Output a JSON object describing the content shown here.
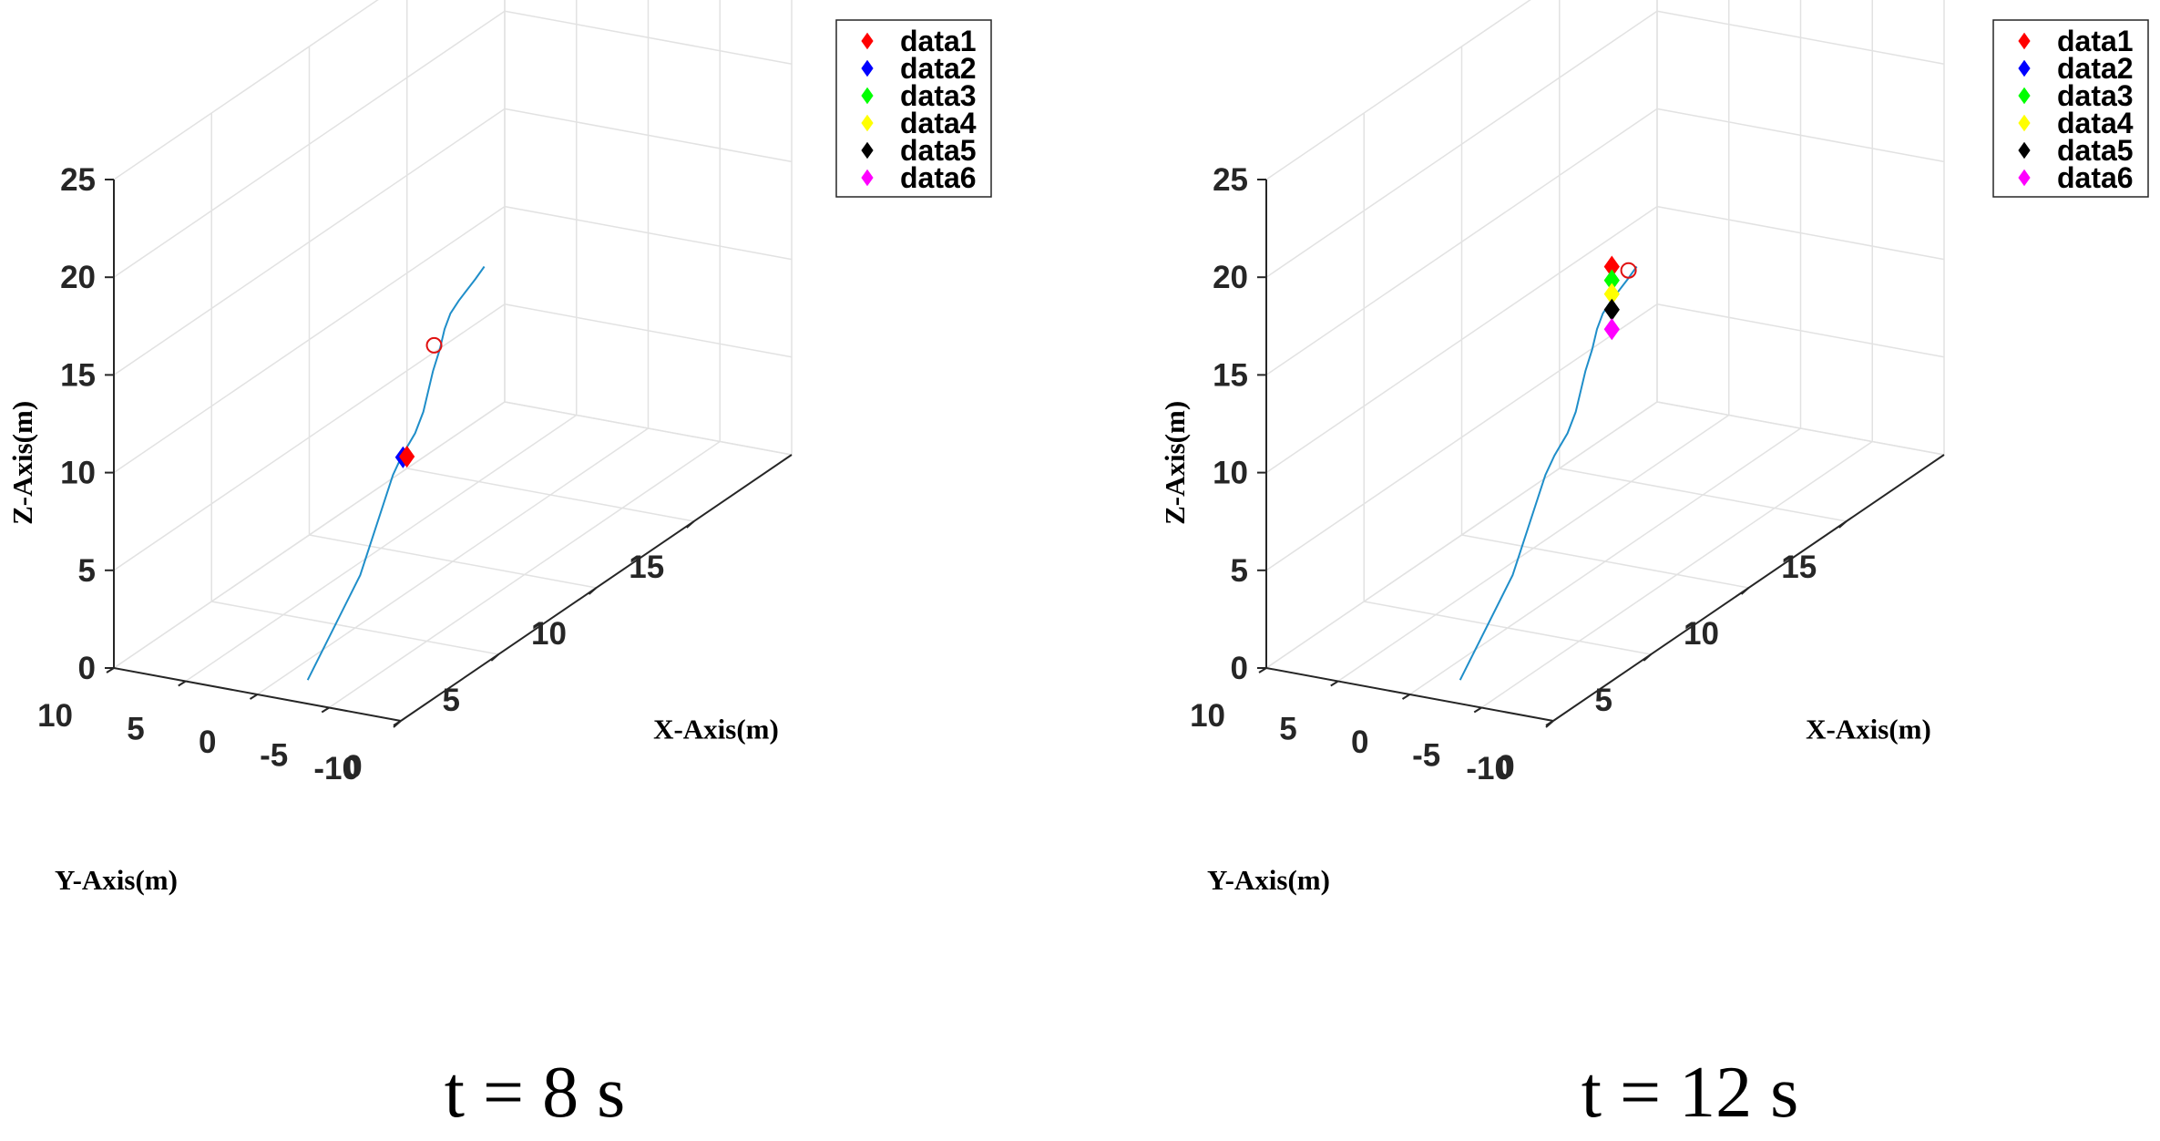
{
  "chart_data": [
    {
      "type": "line3d",
      "caption": "t = 8 s",
      "xlabel": "X-Axis(m)",
      "ylabel": "Y-Axis(m)",
      "zlabel": "Z-Axis(m)",
      "xlim": [
        0,
        20
      ],
      "ylim": [
        -10,
        10
      ],
      "zlim": [
        0,
        25
      ],
      "x_ticks": [
        "0",
        "5",
        "10",
        "15"
      ],
      "y_ticks": [
        "-10",
        "-5",
        "0",
        "5",
        "10"
      ],
      "z_ticks": [
        "0",
        "5",
        "10",
        "15",
        "20",
        "25"
      ],
      "trajectory": {
        "color": "#1f8ec9",
        "points": [
          [
            1.4,
            -1.6,
            0
          ],
          [
            2.4,
            -3.9,
            5
          ],
          [
            2.9,
            -5.5,
            10
          ],
          [
            3.0,
            -6.0,
            11
          ],
          [
            3.3,
            -6.5,
            12
          ],
          [
            3.5,
            -6.8,
            13
          ],
          [
            3.6,
            -7.0,
            14
          ],
          [
            3.7,
            -7.2,
            15
          ],
          [
            3.9,
            -7.4,
            16
          ],
          [
            4.0,
            -7.6,
            17
          ],
          [
            4.3,
            -7.6,
            17.6
          ],
          [
            4.8,
            -7.5,
            17.9
          ],
          [
            5.8,
            -7.3,
            18.3
          ],
          [
            6.4,
            -7.1,
            18.5
          ]
        ]
      },
      "target_marker": {
        "point": [
          4.2,
          -6.6,
          15.9
        ],
        "color": "#e01010"
      },
      "legend": [
        {
          "label": "data1",
          "color": "#ff0000"
        },
        {
          "label": "data2",
          "color": "#0000ff"
        },
        {
          "label": "data3",
          "color": "#00ff00"
        },
        {
          "label": "data4",
          "color": "#ffff00"
        },
        {
          "label": "data5",
          "color": "#000000"
        },
        {
          "label": "data6",
          "color": "#ff00ff"
        }
      ],
      "markers": [
        {
          "series": "data2",
          "color": "#0000ff",
          "point": [
            2.9,
            -6.2,
            11.0
          ]
        },
        {
          "series": "data1",
          "color": "#ff0000",
          "point": [
            3.1,
            -6.2,
            10.9
          ]
        }
      ]
    },
    {
      "type": "line3d",
      "caption": "t = 12 s",
      "xlabel": "X-Axis(m)",
      "ylabel": "Y-Axis(m)",
      "zlabel": "Z-Axis(m)",
      "xlim": [
        0,
        20
      ],
      "ylim": [
        -10,
        10
      ],
      "zlim": [
        0,
        25
      ],
      "x_ticks": [
        "0",
        "5",
        "10",
        "15"
      ],
      "y_ticks": [
        "-10",
        "-5",
        "0",
        "5",
        "10"
      ],
      "z_ticks": [
        "0",
        "5",
        "10",
        "15",
        "20",
        "25"
      ],
      "trajectory": {
        "color": "#1f8ec9",
        "points": [
          [
            1.4,
            -1.6,
            0
          ],
          [
            2.4,
            -3.9,
            5
          ],
          [
            2.9,
            -5.5,
            10
          ],
          [
            3.0,
            -6.0,
            11
          ],
          [
            3.3,
            -6.5,
            12
          ],
          [
            3.5,
            -6.8,
            13
          ],
          [
            3.6,
            -7.0,
            14
          ],
          [
            3.7,
            -7.2,
            15
          ],
          [
            3.9,
            -7.4,
            16
          ],
          [
            4.0,
            -7.6,
            17
          ],
          [
            4.3,
            -7.6,
            17.6
          ],
          [
            4.8,
            -7.5,
            17.9
          ],
          [
            5.8,
            -7.3,
            18.3
          ],
          [
            6.4,
            -7.1,
            18.5
          ]
        ]
      },
      "target_marker": {
        "point": [
          6.2,
          -6.8,
          18.4
        ],
        "color": "#e01010"
      },
      "legend": [
        {
          "label": "data1",
          "color": "#ff0000"
        },
        {
          "label": "data2",
          "color": "#0000ff"
        },
        {
          "label": "data3",
          "color": "#00ff00"
        },
        {
          "label": "data4",
          "color": "#ffff00"
        },
        {
          "label": "data5",
          "color": "#000000"
        },
        {
          "label": "data6",
          "color": "#ff00ff"
        }
      ],
      "markers": [
        {
          "series": "data1",
          "color": "#ff0000",
          "point": [
            5.2,
            -7.0,
            19.3
          ]
        },
        {
          "series": "data3",
          "color": "#00ff00",
          "point": [
            5.2,
            -7.0,
            18.6
          ]
        },
        {
          "series": "data4",
          "color": "#ffff00",
          "point": [
            5.2,
            -7.0,
            17.9
          ]
        },
        {
          "series": "data5",
          "color": "#000000",
          "point": [
            5.2,
            -7.0,
            17.1
          ]
        },
        {
          "series": "data6",
          "color": "#ff00ff",
          "point": [
            5.2,
            -7.0,
            16.1
          ]
        }
      ]
    }
  ]
}
